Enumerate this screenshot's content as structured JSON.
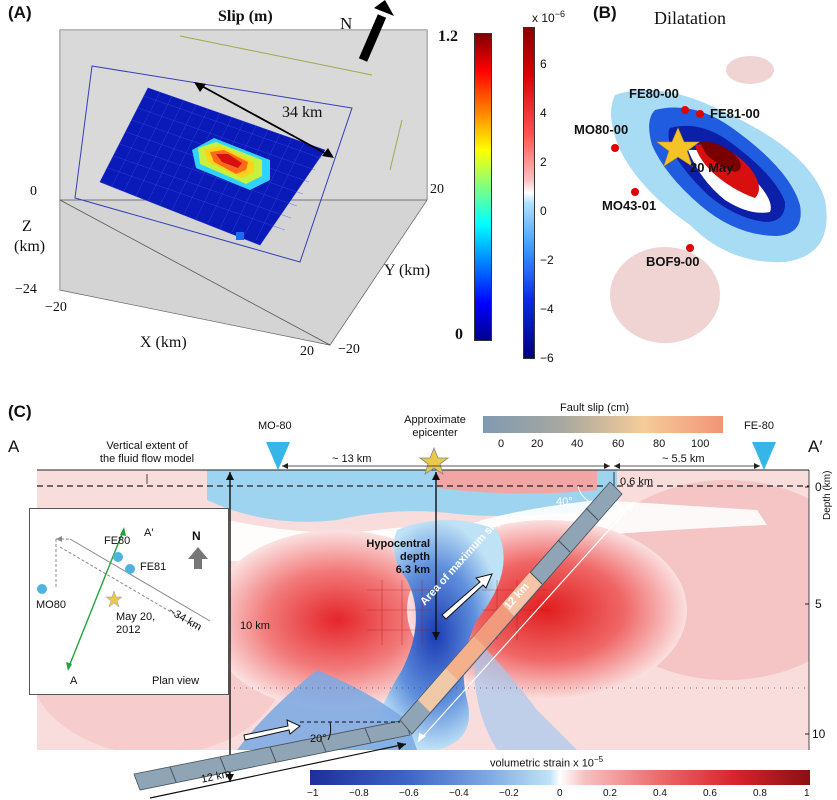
{
  "panel_a": {
    "label": "(A)",
    "title": "Slip (m)",
    "north": "N",
    "fault_length": "34 km",
    "z_axis": "Z\n(km)",
    "z_label": "Z",
    "z_unit": "(km)",
    "x_axis": "X (km)",
    "y_axis": "Y (km)",
    "z_ticks": [
      "0",
      "−24"
    ],
    "x_ticks": [
      "−20",
      "20"
    ],
    "y_ticks": [
      "20",
      "−20"
    ],
    "slip_colorbar": {
      "max": "1.2",
      "min": "0"
    },
    "strain_colorbar": {
      "exponent": "x 10",
      "exponent_power": "−6",
      "ticks": [
        "6",
        "4",
        "2",
        "0",
        "−2",
        "−4",
        "−6"
      ]
    }
  },
  "panel_b": {
    "label": "(B)",
    "title": "Dilatation",
    "stations": [
      "FE80-00",
      "FE81-00",
      "MO80-00",
      "MO43-01",
      "BOF9-00"
    ],
    "event": "20 May"
  },
  "panel_c": {
    "label": "(C)",
    "a_left": "A",
    "a_right": "A′",
    "station_left": "MO-80",
    "station_right": "FE-80",
    "epicenter_label_1": "Approximate",
    "epicenter_label_2": "epicenter",
    "vertical_extent_1": "Vertical extent of",
    "vertical_extent_2": "the fluid flow model",
    "dist_13": "~ 13 km",
    "dist_55": "~ 5.5 km",
    "dist_06": "0.6 km",
    "angle_40": "40°",
    "angle_20": "20°",
    "hypocentral_1": "Hypocentral",
    "hypocentral_2": "depth",
    "hypocentral_3": "6.3 km",
    "ten_km": "10 km",
    "area_max_slip": "Area of maximum slip",
    "twelve_km_a": "12 km",
    "twelve_km_b": "12 km",
    "depth_axis": "Depth (km)",
    "depth_ticks": [
      "0",
      "5",
      "10"
    ],
    "fault_slip_title": "Fault slip (cm)",
    "fault_slip_ticks": [
      "0",
      "20",
      "40",
      "60",
      "80",
      "100"
    ],
    "strain_title": "volumetric strain x 10",
    "strain_power": "−5",
    "strain_ticks": [
      "−1",
      "−0.8",
      "−0.6",
      "−0.4",
      "−0.2",
      "0",
      "0.2",
      "0.4",
      "0.6",
      "0.8",
      "1"
    ],
    "inset": {
      "fe80": "FE80",
      "fe81": "FE81",
      "mo80": "MO80",
      "a_prime": "A′",
      "a": "A",
      "north": "N",
      "length": "~34 km",
      "date_1": "May 20,",
      "date_2": "2012",
      "plan_view": "Plan view"
    }
  },
  "colors": {
    "jet_red": "#b40000",
    "jet_blue": "#00008f",
    "strain_red": "#e23030",
    "strain_blue": "#1d3fb8",
    "station_cyan": "#35b6e6",
    "star_yellow": "#e8c94a"
  }
}
